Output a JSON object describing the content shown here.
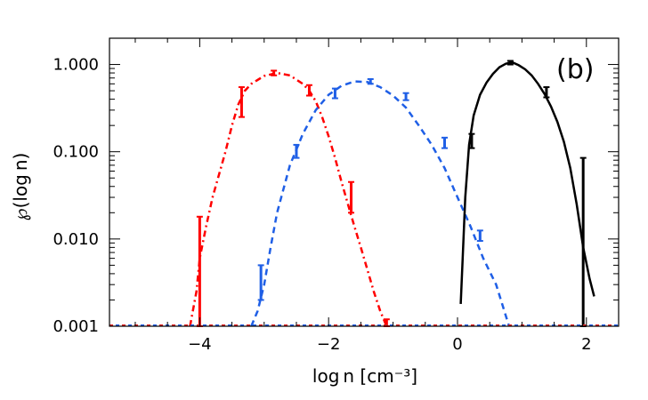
{
  "chart_data": {
    "type": "line",
    "panel_label": "(b)",
    "xlabel": "log n [cm⁻³]",
    "ylabel": "℘(log n)",
    "xlim": [
      -5.4,
      2.5
    ],
    "ylim": [
      0.001,
      2.0
    ],
    "yscale": "log",
    "x_ticks": [
      -4,
      -2,
      0,
      2
    ],
    "x_tick_labels": [
      "−4",
      "−2",
      "0",
      "2"
    ],
    "y_ticks": [
      0.001,
      0.01,
      0.1,
      1.0
    ],
    "y_tick_labels": [
      "0.001",
      "0.010",
      "0.100",
      "1.000"
    ],
    "grid": false,
    "series": [
      {
        "color": "#ff0000",
        "linestyle": "dashdot",
        "x": [
          -4.15,
          -4.05,
          -4.0,
          -3.9,
          -3.8,
          -3.7,
          -3.6,
          -3.5,
          -3.4,
          -3.3,
          -3.2,
          -3.0,
          -2.8,
          -2.6,
          -2.4,
          -2.3,
          -2.2,
          -2.1,
          -2.0,
          -1.9,
          -1.8,
          -1.7,
          -1.6,
          -1.5,
          -1.4,
          -1.3,
          -1.2,
          -1.1
        ],
        "y": [
          0.001,
          0.0025,
          0.006,
          0.014,
          0.03,
          0.055,
          0.1,
          0.2,
          0.35,
          0.5,
          0.6,
          0.74,
          0.8,
          0.75,
          0.6,
          0.5,
          0.38,
          0.25,
          0.15,
          0.085,
          0.045,
          0.025,
          0.014,
          0.008,
          0.0045,
          0.0025,
          0.0015,
          0.001
        ],
        "error_bars": [
          {
            "x": -4.0,
            "low": 0.001,
            "high": 0.018
          },
          {
            "x": -3.35,
            "low": 0.25,
            "high": 0.55
          },
          {
            "x": -2.85,
            "low": 0.75,
            "high": 0.85
          },
          {
            "x": -2.3,
            "low": 0.44,
            "high": 0.58
          },
          {
            "x": -1.65,
            "low": 0.02,
            "high": 0.045
          },
          {
            "x": -1.1,
            "low": 0.001,
            "high": 0.0012
          }
        ]
      },
      {
        "color": "#1f5fe6",
        "linestyle": "dashed",
        "x": [
          -3.2,
          -3.1,
          -3.0,
          -2.9,
          -2.8,
          -2.6,
          -2.4,
          -2.2,
          -2.0,
          -1.8,
          -1.6,
          -1.4,
          -1.2,
          -1.0,
          -0.8,
          -0.6,
          -0.4,
          -0.2,
          0.0,
          0.2,
          0.4,
          0.6,
          0.8
        ],
        "y": [
          0.001,
          0.0015,
          0.003,
          0.008,
          0.02,
          0.07,
          0.16,
          0.3,
          0.45,
          0.57,
          0.64,
          0.63,
          0.55,
          0.44,
          0.32,
          0.2,
          0.12,
          0.065,
          0.03,
          0.014,
          0.006,
          0.003,
          0.001
        ],
        "error_bars": [
          {
            "x": -3.05,
            "low": 0.002,
            "high": 0.005
          },
          {
            "x": -2.5,
            "low": 0.085,
            "high": 0.12
          },
          {
            "x": -1.9,
            "low": 0.41,
            "high": 0.53
          },
          {
            "x": -1.35,
            "low": 0.6,
            "high": 0.68
          },
          {
            "x": -0.8,
            "low": 0.39,
            "high": 0.47
          },
          {
            "x": -0.2,
            "low": 0.11,
            "high": 0.145
          },
          {
            "x": 0.35,
            "low": 0.0095,
            "high": 0.0125
          }
        ]
      },
      {
        "color": "#000000",
        "linestyle": "solid",
        "x": [
          0.05,
          0.08,
          0.12,
          0.18,
          0.25,
          0.35,
          0.45,
          0.55,
          0.65,
          0.75,
          0.85,
          0.95,
          1.05,
          1.15,
          1.25,
          1.35,
          1.45,
          1.55,
          1.65,
          1.75,
          1.85,
          1.95,
          2.05,
          2.12
        ],
        "y": [
          0.0018,
          0.006,
          0.03,
          0.12,
          0.26,
          0.45,
          0.62,
          0.78,
          0.93,
          1.02,
          1.06,
          0.98,
          0.88,
          0.75,
          0.6,
          0.46,
          0.33,
          0.22,
          0.13,
          0.065,
          0.025,
          0.008,
          0.0035,
          0.0022
        ],
        "error_bars": [
          {
            "x": 0.22,
            "low": 0.11,
            "high": 0.16
          },
          {
            "x": 0.82,
            "low": 1.0,
            "high": 1.1
          },
          {
            "x": 1.38,
            "low": 0.42,
            "high": 0.55
          },
          {
            "x": 1.95,
            "low": 0.001,
            "high": 0.085
          }
        ]
      }
    ]
  }
}
